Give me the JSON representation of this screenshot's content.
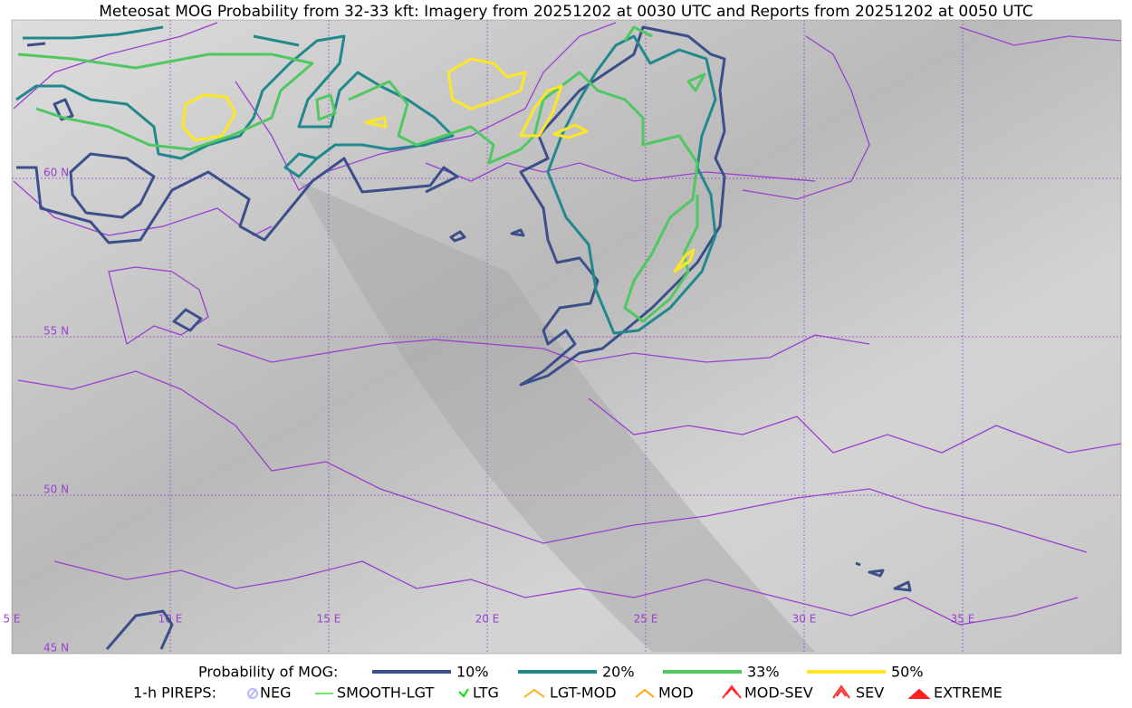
{
  "title": "Meteosat MOG Probability from 32-33 kft: Imagery from 20251202 at 0030 UTC and Reports from 20251202 at 0050 UTC",
  "lat_labels": [
    "60 N",
    "55 N",
    "50 N",
    "45 N"
  ],
  "lon_labels": [
    "5 E",
    "10 E",
    "15 E",
    "20 E",
    "25 E",
    "30 E",
    "35 E"
  ],
  "probability_legend": {
    "title": "Probability of MOG:",
    "items": [
      {
        "label": "10%",
        "color": "#3b4f8a"
      },
      {
        "label": "20%",
        "color": "#21898b"
      },
      {
        "label": "33%",
        "color": "#4fc862"
      },
      {
        "label": "50%",
        "color": "#fde725"
      }
    ]
  },
  "pirep_legend": {
    "title": "1-h PIREPS:",
    "items": [
      {
        "label": "NEG",
        "color": "#b8b8ff"
      },
      {
        "label": "SMOOTH-LGT",
        "color": "#44dd44"
      },
      {
        "label": "LTG",
        "color": "#00e600"
      },
      {
        "label": "LGT-MOD",
        "color": "#ffb020"
      },
      {
        "label": "MOD",
        "color": "#ffa500"
      },
      {
        "label": "MOD-SEV",
        "color": "#ff3030"
      },
      {
        "label": "SEV",
        "color": "#ff3030"
      },
      {
        "label": "EXTREME",
        "color": "#ff2020"
      }
    ]
  }
}
